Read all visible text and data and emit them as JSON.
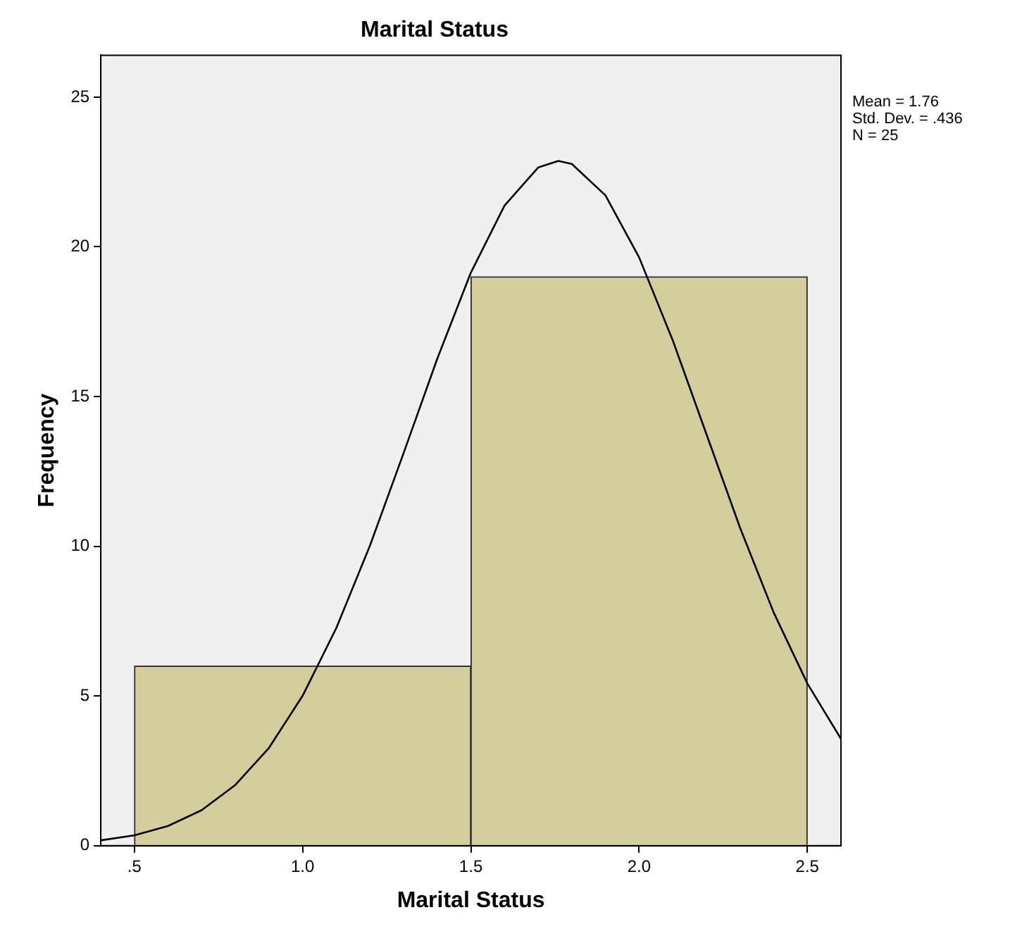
{
  "chart_data": {
    "type": "histogram",
    "title": "Marital Status",
    "xlabel": "Marital Status",
    "ylabel": "Frequency",
    "bins": [
      0.5,
      1.5,
      2.5
    ],
    "values": [
      6,
      19
    ],
    "color": "#d3ce9b",
    "series": [
      {
        "type": "line",
        "color": "#000000",
        "x": [
          0.4,
          0.5,
          0.6,
          0.7,
          0.8,
          0.9,
          1.0,
          1.1,
          1.2,
          1.3,
          1.4,
          1.5,
          1.6,
          1.7,
          1.76,
          1.8,
          1.9,
          2.0,
          2.1,
          2.2,
          2.3,
          2.4,
          2.5,
          2.6
        ],
        "values": [
          0.18,
          0.35,
          0.66,
          1.19,
          2.03,
          3.27,
          5.01,
          7.27,
          10.02,
          13.11,
          16.26,
          19.14,
          21.38,
          22.65,
          22.87,
          22.77,
          21.72,
          19.65,
          16.88,
          13.75,
          10.62,
          7.79,
          5.42,
          3.57
        ]
      }
    ],
    "xlim": [
      0.4,
      2.6
    ],
    "xticks": [
      {
        "value": 0.5,
        "label": ".5"
      },
      {
        "value": 1.0,
        "label": "1.0"
      },
      {
        "value": 1.5,
        "label": "1.5"
      },
      {
        "value": 2.0,
        "label": "2.0"
      },
      {
        "value": 2.5,
        "label": "2.5"
      }
    ],
    "ylim": [
      0,
      26.4
    ],
    "yticks": [
      0,
      5,
      10,
      15,
      20,
      25
    ],
    "grid": false,
    "legend": false,
    "marker": "none",
    "annotations": [
      "Mean = 1.76",
      "Std. Dev. = .436",
      "N = 25"
    ]
  }
}
